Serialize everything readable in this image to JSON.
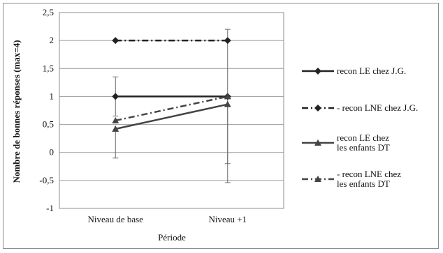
{
  "chart_data": {
    "type": "line",
    "categories": [
      "Niveau de base",
      "Niveau +1"
    ],
    "xlabel": "Période",
    "ylabel": "Nombre de bonnes réponses (max=4)",
    "ylim": [
      -1,
      2.5
    ],
    "yticks": [
      -1,
      -0.5,
      0,
      0.5,
      1,
      1.5,
      2,
      2.5
    ],
    "ytick_labels": [
      "-1",
      "-0,5",
      "0",
      "0,5",
      "1",
      "1,5",
      "2",
      "2,5"
    ],
    "grid": true,
    "legend_position": "right",
    "series": [
      {
        "name_lines": [
          "recon LE chez J.G."
        ],
        "values": [
          1,
          1
        ],
        "marker": "diamond",
        "line_style": "solid",
        "color": "#222222",
        "error": [
          0.35,
          1.2
        ]
      },
      {
        "name_lines": [
          "- recon LNE chez J.G."
        ],
        "values": [
          2,
          2
        ],
        "marker": "diamond",
        "line_style": "dashdot",
        "color": "#222222"
      },
      {
        "name_lines": [
          "recon LE chez",
          "les enfants DT"
        ],
        "values": [
          0.42,
          0.86
        ],
        "marker": "triangle",
        "line_style": "solid",
        "color": "#444444",
        "error_low": [
          0.52,
          1.4
        ]
      },
      {
        "name_lines": [
          "- recon LNE chez",
          "les enfants DT"
        ],
        "values": [
          0.57,
          1
        ],
        "marker": "triangle",
        "line_style": "dashdot",
        "color": "#444444"
      }
    ]
  }
}
